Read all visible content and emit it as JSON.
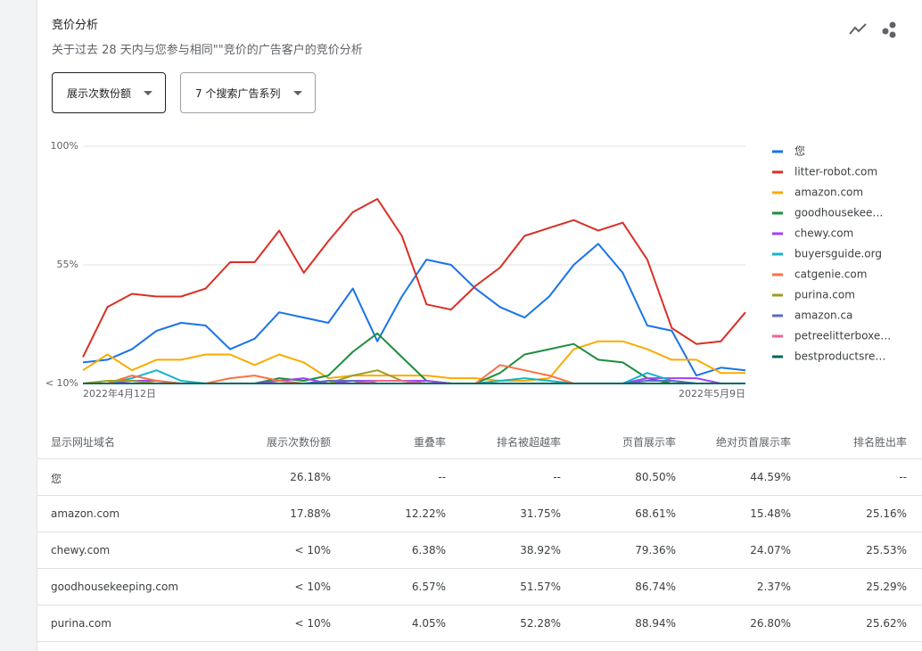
{
  "header": {
    "title": "竞价分析",
    "subtitle": "关于过去 28 天内与您参与相同\"\"竞价的广告客户的竞价分析"
  },
  "controls": {
    "metric": "展示次数份额",
    "campaigns": "7 个搜索广告系列"
  },
  "chart_data": {
    "type": "line",
    "categories": [
      "2022年4月12日",
      null,
      null,
      null,
      null,
      null,
      null,
      null,
      null,
      null,
      null,
      null,
      null,
      null,
      null,
      null,
      null,
      null,
      null,
      null,
      null,
      null,
      null,
      null,
      null,
      null,
      null,
      "2022年5月9日"
    ],
    "ylim": [
      10,
      100
    ],
    "yticks": [
      {
        "value": 10,
        "label": "< 10%"
      },
      {
        "value": 55,
        "label": "55%"
      },
      {
        "value": 100,
        "label": "100%"
      }
    ],
    "grid": true,
    "legend": "right",
    "series": [
      {
        "name": "您",
        "color": "#1a73e8",
        "values": [
          18,
          19,
          23,
          30,
          33,
          32,
          23,
          27,
          37,
          35,
          33,
          46,
          26,
          43,
          57,
          55,
          46,
          39,
          35,
          43,
          55,
          63,
          52,
          32,
          30,
          13,
          16,
          15
        ]
      },
      {
        "name": "litter-robot.com",
        "color": "#d93025",
        "values": [
          20,
          39,
          44,
          43,
          43,
          46,
          56,
          56,
          68,
          52,
          64,
          75,
          80,
          66,
          40,
          38,
          47,
          54,
          66,
          69,
          72,
          68,
          71,
          57,
          31,
          25,
          26,
          37
        ]
      },
      {
        "name": "amazon.com",
        "color": "#f9ab00",
        "values": [
          15,
          21,
          15,
          19,
          19,
          21,
          21,
          17,
          21,
          18,
          12,
          13,
          13,
          13,
          13,
          12,
          12,
          11,
          11,
          12,
          23,
          26,
          26,
          23,
          19,
          19,
          14,
          14
        ]
      },
      {
        "name": "goodhousekee…",
        "color": "#1e8e3e",
        "values": [
          10,
          10,
          10,
          10,
          10,
          10,
          10,
          10,
          12,
          11,
          13,
          22,
          29,
          20,
          11,
          10,
          10,
          14,
          21,
          23,
          25,
          19,
          18,
          12,
          10,
          10,
          10,
          10
        ]
      },
      {
        "name": "chewy.com",
        "color": "#a142f4",
        "values": [
          10,
          10,
          11,
          11,
          10,
          10,
          10,
          10,
          11,
          12,
          10,
          11,
          11,
          11,
          11,
          10,
          10,
          10,
          10,
          10,
          10,
          10,
          10,
          12,
          12,
          12,
          10,
          10
        ]
      },
      {
        "name": "buyersguide.org",
        "color": "#12b5cb",
        "values": [
          10,
          10,
          12,
          15,
          11,
          10,
          10,
          10,
          10,
          10,
          10,
          10,
          10,
          10,
          10,
          10,
          10,
          11,
          12,
          11,
          10,
          10,
          10,
          14,
          11,
          10,
          10,
          10
        ]
      },
      {
        "name": "catgenie.com",
        "color": "#ff7043",
        "values": [
          10,
          10,
          13,
          11,
          10,
          10,
          12,
          13,
          11,
          10,
          10,
          10,
          10,
          10,
          10,
          10,
          10,
          17,
          15,
          13,
          10,
          10,
          10,
          10,
          10,
          10,
          10,
          10
        ]
      },
      {
        "name": "purina.com",
        "color": "#9e9d24",
        "values": [
          10,
          11,
          11,
          10,
          10,
          10,
          10,
          10,
          10,
          10,
          10,
          13,
          15,
          11,
          10,
          10,
          10,
          10,
          10,
          10,
          10,
          10,
          10,
          10,
          10,
          10,
          10,
          10
        ]
      },
      {
        "name": "amazon.ca",
        "color": "#5c6bc0",
        "values": [
          10,
          10,
          10,
          10,
          10,
          10,
          10,
          10,
          10,
          10,
          11,
          11,
          10,
          10,
          10,
          10,
          10,
          10,
          10,
          10,
          10,
          10,
          10,
          11,
          11,
          10,
          10,
          10
        ]
      },
      {
        "name": "petreelitterboxe…",
        "color": "#f06292",
        "values": [
          10,
          10,
          10,
          10,
          10,
          10,
          10,
          10,
          10,
          10,
          10,
          10,
          11,
          11,
          10,
          10,
          10,
          10,
          10,
          10,
          10,
          10,
          10,
          10,
          10,
          10,
          10,
          10
        ]
      },
      {
        "name": "bestproductsre…",
        "color": "#00695c",
        "values": [
          10,
          10,
          10,
          10,
          10,
          10,
          10,
          10,
          10,
          10,
          10,
          10,
          10,
          10,
          10,
          10,
          10,
          10,
          10,
          10,
          10,
          10,
          10,
          10,
          10,
          10,
          10,
          10
        ]
      }
    ]
  },
  "table": {
    "columns": [
      "显示网址域名",
      "展示次数份额",
      "重叠率",
      "排名被超越率",
      "页首展示率",
      "绝对页首展示率",
      "排名胜出率"
    ],
    "rows": [
      [
        "您",
        "26.18%",
        "--",
        "--",
        "80.50%",
        "44.59%",
        "--"
      ],
      [
        "amazon.com",
        "17.88%",
        "12.22%",
        "31.75%",
        "68.61%",
        "15.48%",
        "25.16%"
      ],
      [
        "chewy.com",
        "< 10%",
        "6.38%",
        "38.92%",
        "79.36%",
        "24.07%",
        "25.53%"
      ],
      [
        "goodhousekeeping.com",
        "< 10%",
        "6.57%",
        "51.57%",
        "86.74%",
        "2.37%",
        "25.29%"
      ],
      [
        "purina.com",
        "< 10%",
        "4.05%",
        "52.28%",
        "88.94%",
        "26.80%",
        "25.62%"
      ]
    ]
  }
}
